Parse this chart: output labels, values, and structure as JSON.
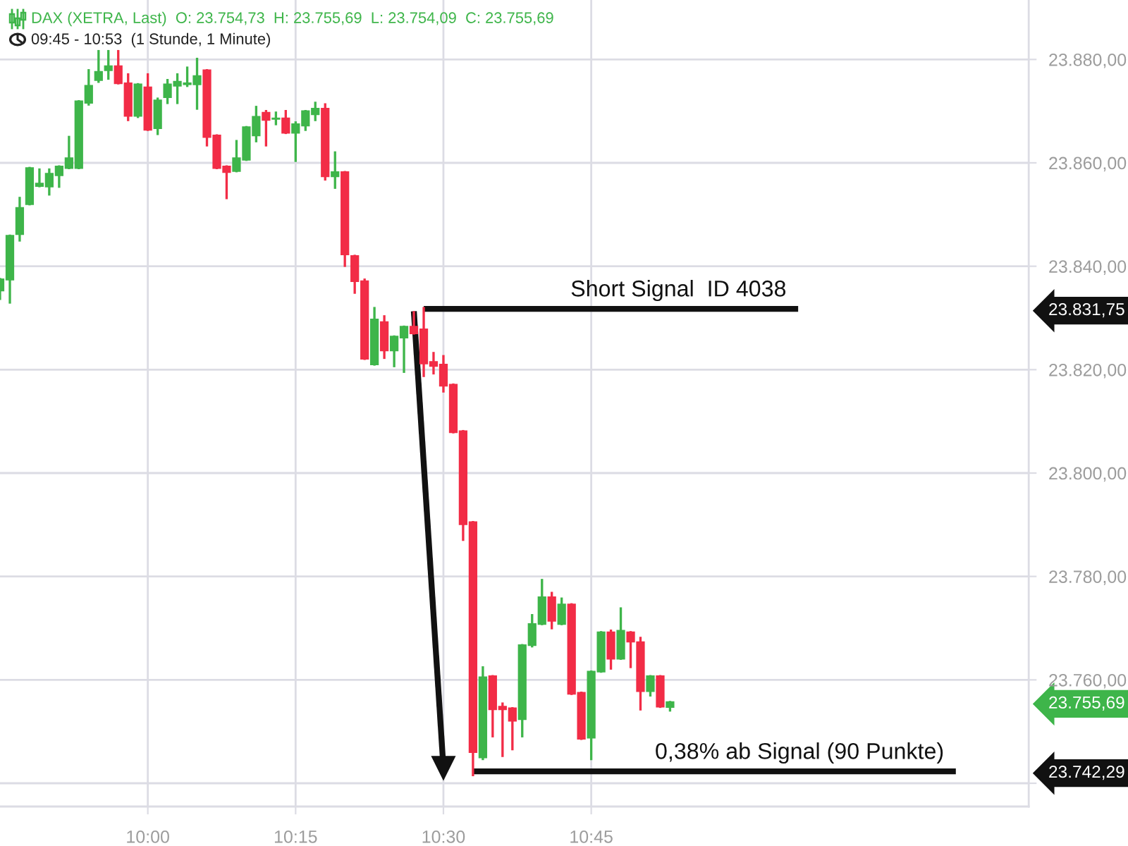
{
  "chart_data": {
    "type": "candlestick",
    "title": "DAX (XETRA, Last)  O: 23.754,73  H: 23.755,69  L: 23.754,09  C: 23.755,69",
    "subtitle": "09:45 - 10:53  (1 Stunde, 1 Minute)",
    "series": [
      {
        "x": [
          9.75,
          9.7667,
          9.7833,
          9.8,
          9.8167,
          9.8333,
          9.85,
          9.8667,
          9.8833,
          9.9,
          9.9167,
          9.9333,
          9.95,
          9.9667,
          9.9833,
          10,
          10.0167,
          10.0333,
          10.05,
          10.0667,
          10.0833,
          10.1,
          10.1167,
          10.1333,
          10.15,
          10.1667,
          10.1833,
          10.2,
          10.2167,
          10.2333,
          10.25,
          10.2667,
          10.2833,
          10.3,
          10.3167,
          10.3333,
          10.35,
          10.3667,
          10.3833,
          10.4,
          10.4167,
          10.4333,
          10.45,
          10.4667,
          10.4833,
          10.5,
          10.5167,
          10.5333,
          10.55,
          10.5667,
          10.5833,
          10.6,
          10.6167,
          10.6333,
          10.65,
          10.6667,
          10.6833,
          10.7,
          10.7167,
          10.7333,
          10.75,
          10.7667,
          10.7833,
          10.8,
          10.8167,
          10.8333,
          10.85,
          10.8667,
          10.8833
        ],
        "ohlc": [
          [
            23835.3,
            23837.5,
            23833.7,
            23837.5
          ],
          [
            23837.4,
            23845.9,
            23833.0,
            23845.9
          ],
          [
            23846.2,
            23853.2,
            23845.0,
            23851.3
          ],
          [
            23852.0,
            23859.0,
            23852.0,
            23859.0
          ],
          [
            23855.5,
            23858.7,
            23855.5,
            23856.0
          ],
          [
            23855.4,
            23858.7,
            23853.9,
            23857.9
          ],
          [
            23857.6,
            23859.3,
            23855.4,
            23859.3
          ],
          [
            23859.0,
            23865.0,
            23859.0,
            23860.9
          ],
          [
            23859.0,
            23871.9,
            23859.0,
            23871.9
          ],
          [
            23871.6,
            23877.9,
            23871.3,
            23874.9
          ],
          [
            23876.0,
            23881.6,
            23875.7,
            23877.6
          ],
          [
            23877.9,
            23881.6,
            23876.3,
            23878.7
          ],
          [
            23878.7,
            23881.6,
            23875.4,
            23875.4
          ],
          [
            23875.4,
            23877.1,
            23868.3,
            23869.1
          ],
          [
            23869.1,
            23875.2,
            23868.9,
            23875.2
          ],
          [
            23874.6,
            23877.1,
            23866.4,
            23866.4
          ],
          [
            23866.7,
            23872.4,
            23865.6,
            23872.1
          ],
          [
            23872.7,
            23876.0,
            23871.6,
            23875.2
          ],
          [
            23874.9,
            23877.1,
            23871.6,
            23875.7
          ],
          [
            23875.2,
            23878.4,
            23874.9,
            23875.4
          ],
          [
            23875.2,
            23880.1,
            23870.5,
            23876.8
          ],
          [
            23877.9,
            23877.9,
            23863.4,
            23865.0
          ],
          [
            23865.3,
            23865.3,
            23859.0,
            23859.0
          ],
          [
            23859.3,
            23859.3,
            23853.2,
            23858.2
          ],
          [
            23858.4,
            23864.2,
            23858.4,
            23860.9
          ],
          [
            23860.6,
            23866.9,
            23860.6,
            23866.9
          ],
          [
            23865.3,
            23870.8,
            23864.2,
            23868.9
          ],
          [
            23869.7,
            23870.0,
            23863.4,
            23868.3
          ],
          [
            23868.5,
            23869.7,
            23867.5,
            23868.6
          ],
          [
            23868.6,
            23870.0,
            23865.8,
            23865.8
          ],
          [
            23865.8,
            23867.8,
            23860.4,
            23867.5
          ],
          [
            23867.2,
            23870.0,
            23866.4,
            23870.0
          ],
          [
            23869.4,
            23871.6,
            23868.3,
            23870.5
          ],
          [
            23870.5,
            23871.3,
            23856.8,
            23857.4
          ],
          [
            23857.4,
            23862.0,
            23855.2,
            23858.2
          ],
          [
            23858.2,
            23858.2,
            23840.1,
            23842.3
          ],
          [
            23842.0,
            23842.0,
            23834.9,
            23837.1
          ],
          [
            23837.1,
            23837.4,
            23822.1,
            23822.1
          ],
          [
            23821.0,
            23831.9,
            23821.0,
            23829.7
          ],
          [
            23829.2,
            23830.3,
            23822.3,
            23823.7
          ],
          [
            23823.7,
            23826.4,
            23820.7,
            23826.4
          ],
          [
            23826.2,
            23828.3,
            23819.6,
            23828.3
          ],
          [
            23828.3,
            23831.1,
            23827.0,
            23827.0
          ],
          [
            23827.8,
            23831.9,
            23818.8,
            23821.2
          ],
          [
            23821.5,
            23823.2,
            23819.3,
            23820.7
          ],
          [
            23821.0,
            23822.6,
            23815.8,
            23816.9
          ],
          [
            23817.1,
            23817.1,
            23807.9,
            23807.9
          ],
          [
            23808.1,
            23808.1,
            23787.1,
            23790.1
          ],
          [
            23790.5,
            23790.5,
            23741.6,
            23746.0
          ],
          [
            23745.0,
            23762.4,
            23744.7,
            23760.5
          ],
          [
            23760.7,
            23760.7,
            23749.1,
            23754.3
          ],
          [
            23754.8,
            23755.4,
            23745.3,
            23754.3
          ],
          [
            23754.5,
            23754.5,
            23746.6,
            23752.1
          ],
          [
            23752.4,
            23766.7,
            23749.1,
            23766.7
          ],
          [
            23766.7,
            23772.5,
            23766.5,
            23770.8
          ],
          [
            23770.8,
            23779.3,
            23770.8,
            23776.0
          ],
          [
            23776.0,
            23776.8,
            23770.0,
            23771.4
          ],
          [
            23770.8,
            23775.7,
            23770.8,
            23774.6
          ],
          [
            23774.6,
            23774.6,
            23757.3,
            23757.3
          ],
          [
            23757.5,
            23757.5,
            23748.6,
            23748.6
          ],
          [
            23748.8,
            23761.6,
            23744.7,
            23761.6
          ],
          [
            23761.6,
            23769.2,
            23761.6,
            23769.2
          ],
          [
            23769.2,
            23769.5,
            23762.2,
            23764.1
          ],
          [
            23764.1,
            23773.8,
            23764.1,
            23769.5
          ],
          [
            23769.2,
            23769.2,
            23762.5,
            23767.4
          ],
          [
            23767.3,
            23768.1,
            23754.3,
            23757.8
          ],
          [
            23757.8,
            23760.7,
            23757.0,
            23760.7
          ],
          [
            23760.7,
            23760.7,
            23754.8,
            23754.8
          ],
          [
            23754.73,
            23755.69,
            23754.09,
            23755.69
          ]
        ],
        "colors": [
          "#3eb54a",
          "#3eb54a",
          "#3eb54a",
          "#3eb54a",
          "#3eb54a",
          "#3eb54a",
          "#3eb54a",
          "#3eb54a",
          "#3eb54a",
          "#3eb54a",
          "#3eb54a",
          "#3eb54a",
          "#f22c46",
          "#f22c46",
          "#3eb54a",
          "#f22c46",
          "#3eb54a",
          "#3eb54a",
          "#3eb54a",
          "#3eb54a",
          "#3eb54a",
          "#f22c46",
          "#f22c46",
          "#f22c46",
          "#3eb54a",
          "#3eb54a",
          "#3eb54a",
          "#f22c46",
          "#3eb54a",
          "#f22c46",
          "#3eb54a",
          "#3eb54a",
          "#3eb54a",
          "#f22c46",
          "#3eb54a",
          "#f22c46",
          "#f22c46",
          "#f22c46",
          "#3eb54a",
          "#f22c46",
          "#3eb54a",
          "#3eb54a",
          "#f22c46",
          "#f22c46",
          "#f22c46",
          "#f22c46",
          "#f22c46",
          "#f22c46",
          "#f22c46",
          "#3eb54a",
          "#f22c46",
          "#f22c46",
          "#f22c46",
          "#3eb54a",
          "#3eb54a",
          "#3eb54a",
          "#f22c46",
          "#3eb54a",
          "#f22c46",
          "#f22c46",
          "#3eb54a",
          "#3eb54a",
          "#f22c46",
          "#3eb54a",
          "#f22c46",
          "#f22c46",
          "#3eb54a",
          "#f22c46",
          "#3eb54a"
        ]
      },
      {
        "type": "line",
        "name": "Short Signal  ID 4038",
        "x": [
          10.4667,
          11.1
        ],
        "values": [
          23831.75,
          23831.75
        ],
        "color": "#111111"
      },
      {
        "type": "line",
        "name": "0,38% ab Signal (90 Punkte)",
        "x": [
          10.55,
          11.3667
        ],
        "values": [
          23742.29,
          23742.29
        ],
        "color": "#111111"
      },
      {
        "type": "line",
        "x": [
          10.45,
          10.5
        ],
        "values": [
          23831.3,
          23743.0
        ],
        "color": "#111111",
        "marker": "triangle"
      }
    ],
    "xlim": [
      9.75,
      11.49
    ],
    "xticks": [
      {
        "value": 10,
        "label": "10:00"
      },
      {
        "value": 10.25,
        "label": "10:15"
      },
      {
        "value": 10.5,
        "label": "10:30"
      },
      {
        "value": 10.75,
        "label": "10:45"
      }
    ],
    "ylim": [
      23735.5,
      23891.5
    ],
    "yticks": [
      {
        "value": 23740,
        "label": null
      },
      {
        "value": 23742.29,
        "label": "23.742,29"
      },
      {
        "value": 23755.69,
        "label": "23.755,69"
      },
      {
        "value": 23760,
        "label": "23.760,00"
      },
      {
        "value": 23780,
        "label": "23.780,00"
      },
      {
        "value": 23800,
        "label": "23.800,00"
      },
      {
        "value": 23820,
        "label": "23.820,00"
      },
      {
        "value": 23831.75,
        "label": "23.831,75"
      },
      {
        "value": 23840,
        "label": "23.840,00"
      },
      {
        "value": 23860,
        "label": "23.860,00"
      },
      {
        "value": 23880,
        "label": "23.880,00"
      }
    ],
    "grid": true
  }
}
